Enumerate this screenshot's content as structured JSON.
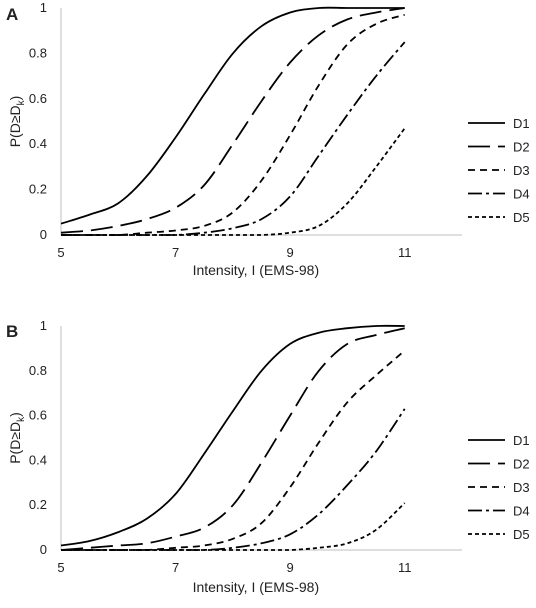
{
  "chart_data": [
    {
      "panel_label": "A",
      "type": "line",
      "xlabel": "Intensity, I (EMS-98)",
      "ylabel_main": "P(D≥D",
      "ylabel_sub": "k",
      "ylabel_close": ")",
      "xlim": [
        5,
        12
      ],
      "ylim": [
        0,
        1
      ],
      "xticks": [
        5,
        7,
        9,
        11
      ],
      "yticks": [
        0,
        0.2,
        0.4,
        0.6,
        0.8,
        1
      ],
      "ytick_labels": [
        "0",
        "0.2",
        "0.4",
        "0.6",
        "0.8",
        "1"
      ],
      "legend_position": "right",
      "x": [
        5,
        5.5,
        6,
        6.5,
        7,
        7.5,
        8,
        8.5,
        9,
        9.5,
        10,
        10.5,
        11
      ],
      "series": [
        {
          "name": "D1",
          "dash": "",
          "values": [
            0.05,
            0.09,
            0.14,
            0.26,
            0.43,
            0.62,
            0.8,
            0.92,
            0.98,
            1.0,
            1.0,
            1.0,
            1.0
          ]
        },
        {
          "name": "D2",
          "dash": "22,8",
          "values": [
            0.01,
            0.02,
            0.04,
            0.07,
            0.12,
            0.22,
            0.4,
            0.59,
            0.76,
            0.88,
            0.95,
            0.98,
            1.0
          ]
        },
        {
          "name": "D3",
          "dash": "7,5",
          "values": [
            0.0,
            0.0,
            0.0,
            0.01,
            0.02,
            0.04,
            0.1,
            0.24,
            0.44,
            0.66,
            0.84,
            0.93,
            0.97
          ]
        },
        {
          "name": "D4",
          "dash": "14,4,3,4",
          "values": [
            0.0,
            0.0,
            0.0,
            0.0,
            0.0,
            0.01,
            0.03,
            0.07,
            0.17,
            0.35,
            0.53,
            0.7,
            0.85
          ]
        },
        {
          "name": "D5",
          "dash": "4,3",
          "values": [
            0.0,
            0.0,
            0.0,
            0.0,
            0.0,
            0.0,
            0.0,
            0.0,
            0.01,
            0.04,
            0.14,
            0.3,
            0.47
          ]
        }
      ]
    },
    {
      "panel_label": "B",
      "type": "line",
      "xlabel": "Intensity, I (EMS-98)",
      "ylabel_main": "P(D≥D",
      "ylabel_sub": "k",
      "ylabel_close": ")",
      "xlim": [
        5,
        12
      ],
      "ylim": [
        0,
        1
      ],
      "xticks": [
        5,
        7,
        9,
        11
      ],
      "yticks": [
        0,
        0.2,
        0.4,
        0.6,
        0.8,
        1
      ],
      "ytick_labels": [
        "0",
        "0.2",
        "0.4",
        "0.6",
        "0.8",
        "1"
      ],
      "legend_position": "right",
      "x": [
        5,
        5.5,
        6,
        6.5,
        7,
        7.5,
        8,
        8.5,
        9,
        9.5,
        10,
        10.5,
        11
      ],
      "series": [
        {
          "name": "D1",
          "dash": "",
          "values": [
            0.02,
            0.04,
            0.08,
            0.14,
            0.25,
            0.43,
            0.62,
            0.8,
            0.92,
            0.97,
            0.99,
            1.0,
            1.0
          ]
        },
        {
          "name": "D2",
          "dash": "22,8",
          "values": [
            0.0,
            0.01,
            0.02,
            0.03,
            0.06,
            0.1,
            0.2,
            0.39,
            0.6,
            0.8,
            0.92,
            0.96,
            0.99
          ]
        },
        {
          "name": "D3",
          "dash": "7,5",
          "values": [
            0.0,
            0.0,
            0.0,
            0.0,
            0.01,
            0.02,
            0.05,
            0.12,
            0.28,
            0.48,
            0.66,
            0.78,
            0.89
          ]
        },
        {
          "name": "D4",
          "dash": "14,4,3,4",
          "values": [
            0.0,
            0.0,
            0.0,
            0.0,
            0.0,
            0.0,
            0.01,
            0.03,
            0.07,
            0.16,
            0.29,
            0.44,
            0.63
          ]
        },
        {
          "name": "D5",
          "dash": "4,3",
          "values": [
            0.0,
            0.0,
            0.0,
            0.0,
            0.0,
            0.0,
            0.0,
            0.0,
            0.0,
            0.01,
            0.03,
            0.09,
            0.21
          ]
        }
      ]
    }
  ]
}
